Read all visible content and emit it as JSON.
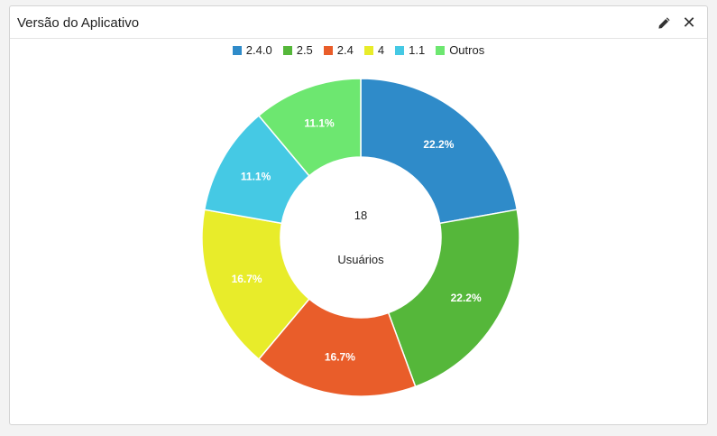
{
  "widget": {
    "title": "Versão do Aplicativo",
    "icons": {
      "edit": "pencil-icon",
      "close": "close-icon"
    }
  },
  "chart_data": {
    "type": "pie",
    "donut": true,
    "categories": [
      "2.4.0",
      "2.5",
      "2.4",
      "4",
      "1.1",
      "Outros"
    ],
    "values": [
      22.2,
      22.2,
      16.7,
      16.7,
      11.1,
      11.1
    ],
    "labels": [
      "22.2%",
      "22.2%",
      "16.7%",
      "16.7%",
      "11.1%",
      "11.1%"
    ],
    "colors": [
      "#2f8bc9",
      "#55b73a",
      "#e95d2a",
      "#e8ec2a",
      "#45c9e4",
      "#6de770"
    ],
    "center_value": "18",
    "center_label": "Usuários",
    "legend_position": "top"
  }
}
